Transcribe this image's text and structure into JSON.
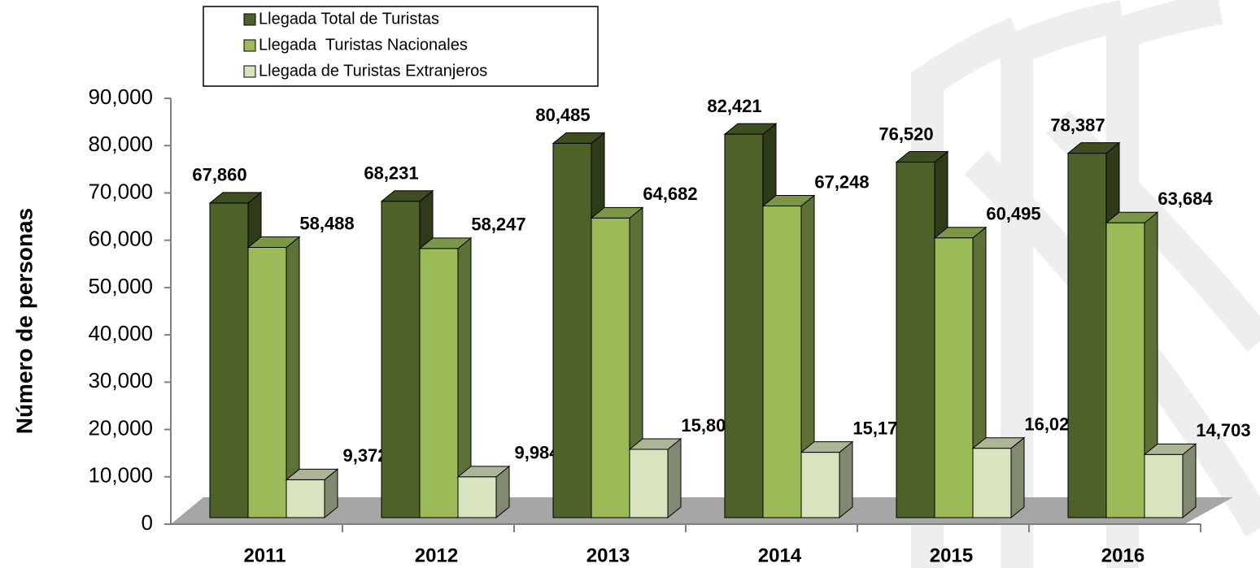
{
  "chart_data": {
    "type": "bar3d",
    "y_label": "Número de personas",
    "categories": [
      "2011",
      "2012",
      "2013",
      "2014",
      "2015",
      "2016"
    ],
    "series": [
      {
        "name": "Llegada Total de Turistas",
        "color": "#4d6128",
        "values": [
          67860,
          68231,
          80485,
          82421,
          76520,
          78387
        ],
        "value_labels": [
          "67,860",
          "68,231",
          "80,485",
          "82,421",
          "76,520",
          "78,387"
        ]
      },
      {
        "name": "Llegada  Turistas Nacionales",
        "color": "#9bbb59",
        "values": [
          58488,
          58247,
          64682,
          67248,
          60495,
          63684
        ],
        "value_labels": [
          "58,488",
          "58,247",
          "64,682",
          "67,248",
          "60,495",
          "63,684"
        ]
      },
      {
        "name": "Llegada de Turistas Extranjeros",
        "color": "#d7e4bd",
        "values": [
          9372,
          9984,
          15803,
          15173,
          16025,
          14703
        ],
        "value_labels": [
          "9,372",
          "9,984",
          "15,803",
          "15,173",
          "16,025",
          "14,703"
        ]
      }
    ],
    "ylim": [
      0,
      90000
    ],
    "yticks": [
      0,
      {
        "value": 10000,
        "label": "10,000"
      },
      {
        "value": 20000,
        "label": "20,000"
      },
      {
        "value": 30000,
        "label": "30,000"
      },
      {
        "value": 40000,
        "label": "40,000"
      },
      {
        "value": 50000,
        "label": "50,000"
      },
      {
        "value": 60000,
        "label": "60,000"
      },
      {
        "value": 70000,
        "label": "70,000"
      },
      {
        "value": 80000,
        "label": "80,000"
      },
      {
        "value": 90000,
        "label": "90,000"
      }
    ]
  }
}
